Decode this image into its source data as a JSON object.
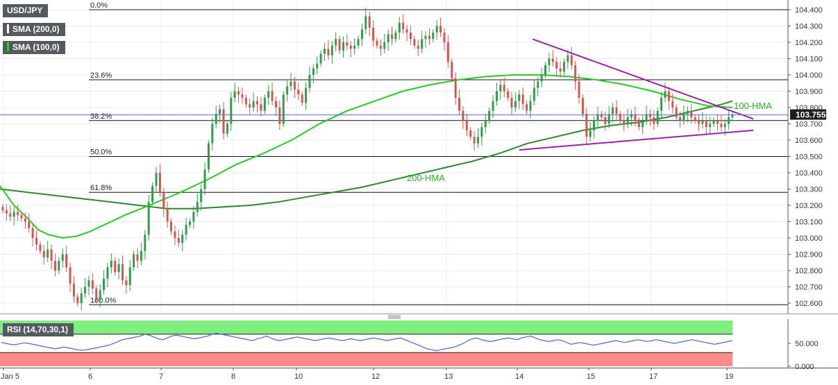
{
  "symbol": "USD/JPY",
  "legend": [
    {
      "label": "SMA (200,0)",
      "color": "#555a60"
    },
    {
      "label": "SMA (100,0)",
      "color": "#2bd02b"
    }
  ],
  "price_tag": "103.755",
  "rsi_legend": "RSI (14,70,30,1)",
  "colors": {
    "up": "#2e9e4a",
    "down": "#d9534f",
    "hma100": "#22cc22",
    "hma200": "#2a8a2a",
    "trend": "#9b1fb0",
    "rsi": "#4a62d6",
    "rsi_over": "#7fef7f",
    "rsi_under": "#ff8a8a"
  },
  "chart_data": [
    {
      "type": "candlestick",
      "title": "USD/JPY",
      "ylim": [
        102.55,
        104.45
      ],
      "y_ticks": [
        "104.400",
        "104.300",
        "104.200",
        "104.100",
        "104.000",
        "103.900",
        "103.800",
        "103.700",
        "103.600",
        "103.500",
        "103.400",
        "103.300",
        "103.200",
        "103.100",
        "103.000",
        "102.900",
        "102.800",
        "102.700",
        "102.600"
      ],
      "x_ticks": [
        "Jan 5",
        "6",
        "7",
        "8",
        "10",
        "12",
        "13",
        "14",
        "15",
        "17",
        "19"
      ],
      "fib_levels": [
        {
          "label": "0.0%",
          "value": 104.4
        },
        {
          "label": "23.6%",
          "value": 103.97
        },
        {
          "label": "38.2%",
          "value": 103.72
        },
        {
          "label": "50.0%",
          "value": 103.5
        },
        {
          "label": "61.8%",
          "value": 103.28
        },
        {
          "label": "100.0%",
          "value": 102.59
        }
      ],
      "last_price": 103.755,
      "closes": [
        103.17,
        103.15,
        103.13,
        103.16,
        103.14,
        103.12,
        103.1,
        103.06,
        103.0,
        102.96,
        102.92,
        102.88,
        102.93,
        102.86,
        102.8,
        102.86,
        102.9,
        102.82,
        102.72,
        102.64,
        102.6,
        102.66,
        102.7,
        102.74,
        102.69,
        102.62,
        102.68,
        102.75,
        102.82,
        102.86,
        102.79,
        102.84,
        102.74,
        102.71,
        102.82,
        102.9,
        102.86,
        102.92,
        103.02,
        103.22,
        103.32,
        103.4,
        103.28,
        103.18,
        103.1,
        103.04,
        103.0,
        102.97,
        103.02,
        103.08,
        103.1,
        103.16,
        103.22,
        103.3,
        103.42,
        103.58,
        103.7,
        103.76,
        103.79,
        103.64,
        103.7,
        103.86,
        103.9,
        103.88,
        103.86,
        103.82,
        103.8,
        103.84,
        103.82,
        103.78,
        103.86,
        103.9,
        103.84,
        103.8,
        103.7,
        103.88,
        103.93,
        103.96,
        103.91,
        103.88,
        103.83,
        103.92,
        104.0,
        104.04,
        104.07,
        104.13,
        104.16,
        104.12,
        104.18,
        104.22,
        104.15,
        104.2,
        104.18,
        104.16,
        104.18,
        104.22,
        104.28,
        104.36,
        104.29,
        104.21,
        104.18,
        104.16,
        104.2,
        104.25,
        104.22,
        104.26,
        104.32,
        104.28,
        104.26,
        104.22,
        104.18,
        104.16,
        104.22,
        104.24,
        104.22,
        104.26,
        104.3,
        104.26,
        104.2,
        104.08,
        103.98,
        103.86,
        103.78,
        103.72,
        103.66,
        103.62,
        103.58,
        103.62,
        103.68,
        103.72,
        103.78,
        103.84,
        103.9,
        103.94,
        103.9,
        103.86,
        103.8,
        103.84,
        103.88,
        103.82,
        103.78,
        103.84,
        103.92,
        103.96,
        104.0,
        104.06,
        104.1,
        104.08,
        104.04,
        104.02,
        104.08,
        104.12,
        104.06,
        103.96,
        103.86,
        103.76,
        103.62,
        103.66,
        103.72,
        103.76,
        103.74,
        103.7,
        103.76,
        103.8,
        103.76,
        103.72,
        103.7,
        103.74,
        103.76,
        103.72,
        103.68,
        103.72,
        103.76,
        103.74,
        103.7,
        103.78,
        103.86,
        103.9,
        103.84,
        103.8,
        103.74,
        103.72,
        103.76,
        103.78,
        103.74,
        103.72,
        103.7,
        103.72,
        103.68,
        103.7,
        103.72,
        103.7,
        103.68,
        103.7,
        103.74,
        103.755
      ],
      "hma100": [
        [
          0,
          103.32
        ],
        [
          20,
          103.2
        ],
        [
          40,
          103.12
        ],
        [
          55,
          103.05
        ],
        [
          70,
          103.02
        ],
        [
          90,
          103.0
        ],
        [
          110,
          103.01
        ],
        [
          130,
          103.04
        ],
        [
          150,
          103.08
        ],
        [
          180,
          103.14
        ],
        [
          215,
          103.2
        ],
        [
          260,
          103.28
        ],
        [
          300,
          103.36
        ],
        [
          340,
          103.45
        ],
        [
          380,
          103.52
        ],
        [
          420,
          103.6
        ],
        [
          460,
          103.7
        ],
        [
          500,
          103.78
        ],
        [
          540,
          103.84
        ],
        [
          580,
          103.9
        ],
        [
          620,
          103.94
        ],
        [
          660,
          103.97
        ],
        [
          700,
          103.99
        ],
        [
          740,
          104.0
        ],
        [
          780,
          104.0
        ],
        [
          820,
          103.99
        ],
        [
          860,
          103.97
        ],
        [
          900,
          103.94
        ],
        [
          940,
          103.9
        ],
        [
          980,
          103.85
        ],
        [
          1020,
          103.81
        ],
        [
          1055,
          103.8
        ]
      ],
      "hma200": [
        [
          0,
          103.3
        ],
        [
          40,
          103.28
        ],
        [
          80,
          103.26
        ],
        [
          120,
          103.24
        ],
        [
          160,
          103.22
        ],
        [
          200,
          103.2
        ],
        [
          240,
          103.18
        ],
        [
          280,
          103.18
        ],
        [
          320,
          103.19
        ],
        [
          360,
          103.2
        ],
        [
          400,
          103.22
        ],
        [
          440,
          103.25
        ],
        [
          480,
          103.28
        ],
        [
          520,
          103.31
        ],
        [
          560,
          103.35
        ],
        [
          600,
          103.39
        ],
        [
          640,
          103.43
        ],
        [
          680,
          103.47
        ],
        [
          720,
          103.52
        ],
        [
          760,
          103.58
        ],
        [
          800,
          103.62
        ],
        [
          840,
          103.66
        ],
        [
          880,
          103.69
        ],
        [
          920,
          103.71
        ],
        [
          960,
          103.74
        ],
        [
          1000,
          103.78
        ],
        [
          1040,
          103.82
        ],
        [
          1055,
          103.84
        ]
      ],
      "hma100_label": "100-HMA",
      "hma200_label": "200-HMA",
      "trendlines": [
        {
          "from": [
            767,
            104.22
          ],
          "to": [
            1085,
            103.73
          ]
        },
        {
          "from": [
            748,
            103.54
          ],
          "to": [
            1085,
            103.66
          ]
        }
      ]
    },
    {
      "type": "line",
      "title": "RSI (14,70,30,1)",
      "ylim": [
        0,
        100
      ],
      "y_ticks": [
        "50.000",
        "0.000"
      ],
      "overbought": 70,
      "oversold": 30,
      "values": [
        52,
        50,
        48,
        47,
        49,
        51,
        50,
        48,
        46,
        44,
        42,
        40,
        38,
        40,
        42,
        40,
        38,
        36,
        35,
        36,
        38,
        40,
        42,
        44,
        46,
        50,
        54,
        58,
        60,
        62,
        64,
        66,
        70,
        68,
        64,
        60,
        58,
        62,
        66,
        68,
        66,
        64,
        62,
        60,
        62,
        64,
        66,
        70,
        72,
        70,
        68,
        66,
        64,
        62,
        60,
        58,
        56,
        60,
        62,
        66,
        62,
        58,
        56,
        58,
        60,
        62,
        64,
        62,
        60,
        58,
        56,
        58,
        60,
        62,
        60,
        58,
        56,
        58,
        60,
        58,
        56,
        58,
        60,
        62,
        60,
        58,
        56,
        58,
        60,
        62,
        58,
        54,
        50,
        46,
        42,
        38,
        36,
        34,
        36,
        38,
        40,
        42,
        46,
        50,
        56,
        60,
        62,
        58,
        56,
        54,
        56,
        58,
        60,
        62,
        60,
        58,
        62,
        64,
        66,
        62,
        58,
        56,
        54,
        56,
        58,
        56,
        52,
        48,
        50,
        52,
        50,
        48,
        46,
        48,
        50,
        52,
        54,
        56,
        54,
        52,
        54,
        56,
        58,
        56,
        54,
        56,
        58,
        56,
        54,
        52,
        50,
        52,
        54,
        56,
        58,
        56,
        54,
        52,
        50,
        48,
        50,
        52,
        54,
        56
      ]
    }
  ]
}
